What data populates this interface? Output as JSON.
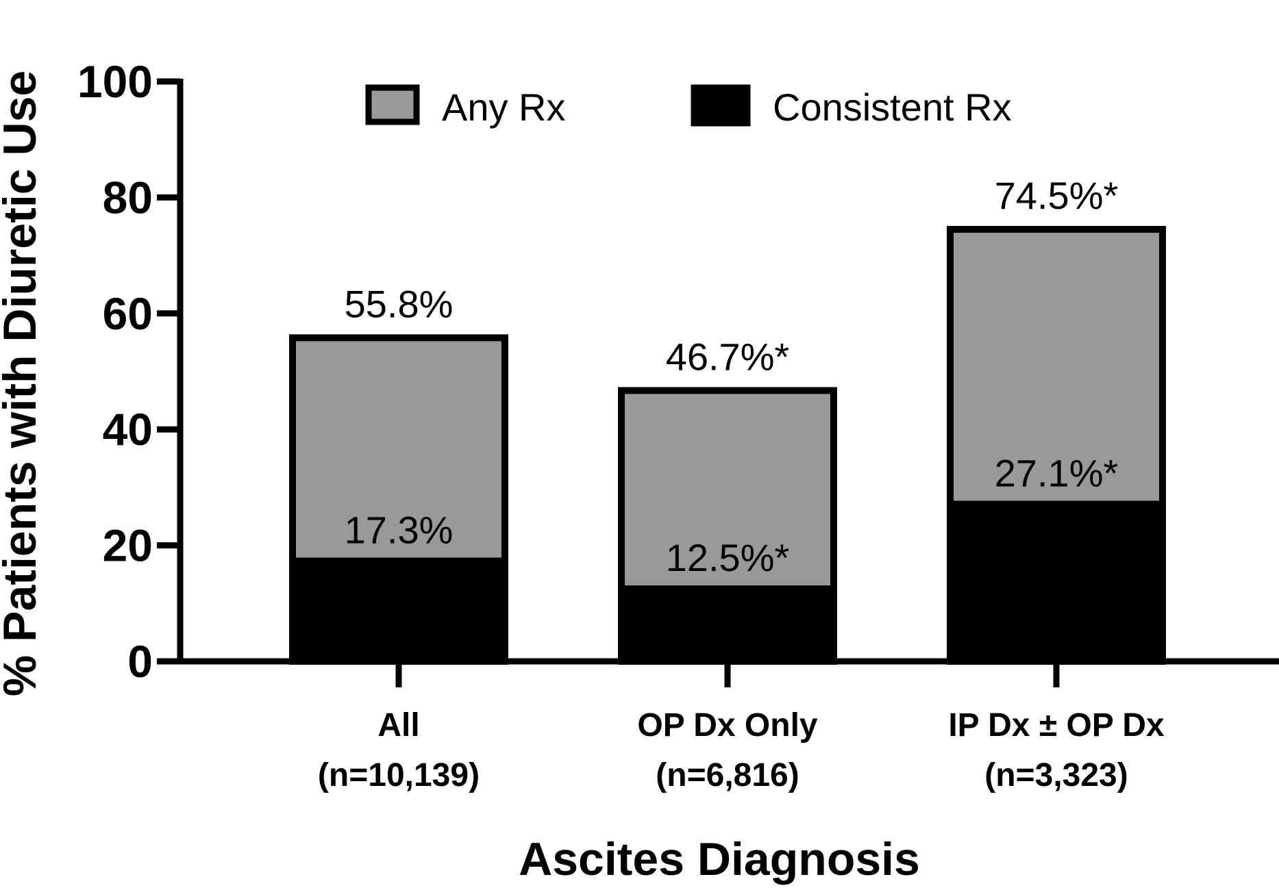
{
  "chart_data": {
    "type": "bar",
    "stacked": false,
    "overlaid": true,
    "categories": [
      {
        "line1": "All",
        "line2": "(n=10,139)"
      },
      {
        "line1": "OP Dx Only",
        "line2": "(n=6,816)"
      },
      {
        "line1": "IP Dx ± OP Dx",
        "line2": "(n=3,323)"
      }
    ],
    "series": [
      {
        "name": "Any Rx",
        "values": [
          55.8,
          46.7,
          74.5
        ],
        "labels": [
          "55.8%",
          "46.7%*",
          "74.5%*"
        ],
        "color": "#999999"
      },
      {
        "name": "Consistent Rx",
        "values": [
          17.3,
          12.5,
          27.1
        ],
        "labels": [
          "17.3%",
          "12.5%*",
          "27.1%*"
        ],
        "color": "#000000"
      }
    ],
    "xlabel": "Ascites Diagnosis",
    "ylabel": "% Patients with Diuretic Use",
    "ylim": [
      0,
      100
    ],
    "yticks": [
      0,
      20,
      40,
      60,
      80,
      100
    ],
    "grid": false,
    "legend_position": "top-center"
  }
}
